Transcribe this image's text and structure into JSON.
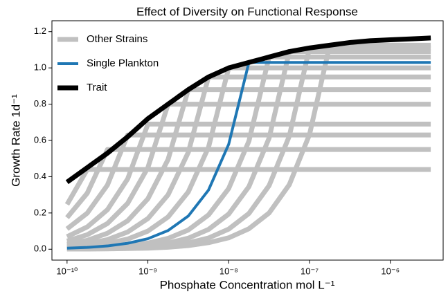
{
  "chart_data": {
    "type": "line",
    "title": "Effect of Diversity on Functional Response",
    "x_label": "Phosphate Concentration mol L⁻¹",
    "y_label": "Growth Rate 1d⁻¹",
    "x_scale": "log",
    "legend": "upper left",
    "xlim": [
      6.5e-11,
      4.5e-06
    ],
    "ylim": [
      -0.06,
      1.26
    ],
    "xticks": [
      {
        "value": 1e-10,
        "label": "10⁻¹⁰"
      },
      {
        "value": 1e-09,
        "label": "10⁻⁹"
      },
      {
        "value": 1e-08,
        "label": "10⁻⁸"
      },
      {
        "value": 1e-07,
        "label": "10⁻⁷"
      },
      {
        "value": 1e-06,
        "label": "10⁻⁶"
      }
    ],
    "yticks": [
      {
        "value": 0,
        "label": "0.0"
      },
      0.2,
      0.4,
      0.6,
      0.8,
      {
        "value": 1,
        "label": "1.0"
      },
      1.2
    ],
    "x": [
      1e-10,
      1.778e-10,
      3.162e-10,
      5.623e-10,
      1e-09,
      1.778e-09,
      3.162e-09,
      5.623e-09,
      1e-08,
      1.778e-08,
      3.162e-08,
      5.623e-08,
      1e-07,
      1.778e-07,
      3.162e-07,
      5.623e-07,
      1e-06,
      1.778e-06,
      3.162e-06
    ],
    "series": [
      {
        "name": "Other Strains",
        "color": "#c0c0c0",
        "linewidth": 7,
        "values": [
          0.247,
          0.44,
          0.44,
          0.44,
          0.44,
          0.44,
          0.44,
          0.44,
          0.44,
          0.44,
          0.44,
          0.44,
          0.44,
          0.44,
          0.44,
          0.44,
          0.44,
          0.44,
          0.44
        ]
      },
      {
        "name": "Other Strains",
        "color": "#c0c0c0",
        "linewidth": 7,
        "values": [
          0.174,
          0.309,
          0.55,
          0.55,
          0.55,
          0.55,
          0.55,
          0.55,
          0.55,
          0.55,
          0.55,
          0.55,
          0.55,
          0.55,
          0.55,
          0.55,
          0.55,
          0.55,
          0.55
        ]
      },
      {
        "name": "Other Strains",
        "color": "#c0c0c0",
        "linewidth": 7,
        "values": [
          0.112,
          0.199,
          0.354,
          0.63,
          0.63,
          0.63,
          0.63,
          0.63,
          0.63,
          0.63,
          0.63,
          0.63,
          0.63,
          0.63,
          0.63,
          0.63,
          0.63,
          0.63,
          0.63
        ]
      },
      {
        "name": "Other Strains",
        "color": "#c0c0c0",
        "linewidth": 7,
        "values": [
          0.069,
          0.123,
          0.218,
          0.388,
          0.69,
          0.69,
          0.69,
          0.69,
          0.69,
          0.69,
          0.69,
          0.69,
          0.69,
          0.69,
          0.69,
          0.69,
          0.69,
          0.69,
          0.69
        ]
      },
      {
        "name": "Other Strains",
        "color": "#c0c0c0",
        "linewidth": 7,
        "values": [
          0.045,
          0.08,
          0.142,
          0.253,
          0.45,
          0.8,
          0.8,
          0.8,
          0.8,
          0.8,
          0.8,
          0.8,
          0.8,
          0.8,
          0.8,
          0.8,
          0.8,
          0.8,
          0.8
        ]
      },
      {
        "name": "Other Strains",
        "color": "#c0c0c0",
        "linewidth": 7,
        "values": [
          0.028,
          0.049,
          0.088,
          0.157,
          0.278,
          0.495,
          0.88,
          0.88,
          0.88,
          0.88,
          0.88,
          0.88,
          0.88,
          0.88,
          0.88,
          0.88,
          0.88,
          0.88,
          0.88
        ]
      },
      {
        "name": "Other Strains",
        "color": "#c0c0c0",
        "linewidth": 7,
        "values": [
          0.017,
          0.03,
          0.053,
          0.095,
          0.169,
          0.3,
          0.534,
          0.95,
          0.95,
          0.95,
          0.95,
          0.95,
          0.95,
          0.95,
          0.95,
          0.95,
          0.95,
          0.95,
          0.95
        ]
      },
      {
        "name": "Other Strains",
        "color": "#c0c0c0",
        "linewidth": 7,
        "values": [
          0.01,
          0.018,
          0.032,
          0.056,
          0.1,
          0.178,
          0.316,
          0.562,
          1.0,
          1.0,
          1.0,
          1.0,
          1.0,
          1.0,
          1.0,
          1.0,
          1.0,
          1.0,
          1.0
        ]
      },
      {
        "name": "Other Strains",
        "color": "#c0c0c0",
        "linewidth": 7,
        "values": [
          0.003,
          0.006,
          0.011,
          0.019,
          0.034,
          0.06,
          0.106,
          0.189,
          0.335,
          0.596,
          1.06,
          1.06,
          1.06,
          1.06,
          1.06,
          1.06,
          1.06,
          1.06,
          1.06
        ]
      },
      {
        "name": "Other Strains",
        "color": "#c0c0c0",
        "linewidth": 7,
        "values": [
          0.002,
          0.003,
          0.006,
          0.011,
          0.019,
          0.034,
          0.061,
          0.109,
          0.194,
          0.345,
          0.613,
          1.09,
          1.09,
          1.09,
          1.09,
          1.09,
          1.09,
          1.09,
          1.09
        ]
      },
      {
        "name": "Other Strains",
        "color": "#c0c0c0",
        "linewidth": 7,
        "values": [
          0.001,
          0.002,
          0.004,
          0.006,
          0.011,
          0.02,
          0.035,
          0.062,
          0.111,
          0.197,
          0.351,
          0.624,
          1.11,
          1.11,
          1.11,
          1.11,
          1.11,
          1.11,
          1.11
        ]
      },
      {
        "name": "Other Strains",
        "color": "#c0c0c0",
        "linewidth": 7,
        "values": [
          0.001,
          0.001,
          0.002,
          0.004,
          0.006,
          0.011,
          0.02,
          0.036,
          0.063,
          0.113,
          0.2,
          0.356,
          0.633,
          1.125,
          1.125,
          1.125,
          1.125,
          1.125,
          1.125
        ]
      },
      {
        "name": "Single Plankton",
        "color": "#1f77b4",
        "linewidth": 4,
        "values": [
          0.006,
          0.01,
          0.018,
          0.033,
          0.058,
          0.103,
          0.183,
          0.326,
          0.579,
          1.03,
          1.03,
          1.03,
          1.03,
          1.03,
          1.03,
          1.03,
          1.03,
          1.03,
          1.03
        ]
      },
      {
        "name": "Trait",
        "color": "#000000",
        "linewidth": 7,
        "values": [
          0.37,
          0.45,
          0.53,
          0.62,
          0.72,
          0.8,
          0.88,
          0.95,
          1.0,
          1.03,
          1.06,
          1.09,
          1.11,
          1.125,
          1.14,
          1.15,
          1.155,
          1.16,
          1.165
        ]
      }
    ]
  }
}
